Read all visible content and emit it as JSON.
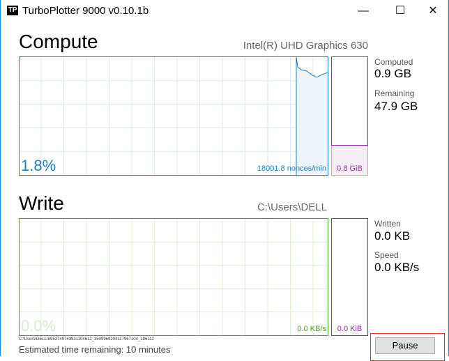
{
  "window": {
    "title": "TurboPlotter 9000 v0.10.1b",
    "logo": "TP",
    "minimize": "—",
    "maximize": "☐",
    "close": "✕"
  },
  "compute": {
    "title": "Compute",
    "device": "Intel(R) UHD Graphics 630",
    "percent": "1.8%",
    "rate": "18001.8 nonces/min",
    "memory": "0.8 GiB",
    "memory_fill": 0.25,
    "computed_label": "Computed",
    "computed_value": "0.9 GB",
    "remaining_label": "Remaining",
    "remaining_value": "47.9 GB",
    "color": "#1a7fc4",
    "bar_color": "#9a28b4"
  },
  "write": {
    "title": "Write",
    "path": "C:\\Users\\DELL",
    "percent": "0.0%",
    "rate": "0.0 KB/s",
    "memory": "0.0 KiB",
    "written_label": "Written",
    "written_value": "0.0 KB",
    "speed_label": "Speed",
    "speed_value": "0.0 KB/s",
    "color": "#4da31e",
    "bar_color": "#9a28b4"
  },
  "footer": {
    "file": "C:\\Users\\DELL\\8952749743931104512_3509969204117967104_186112",
    "eta": "Estimated time remaining: 10 minutes",
    "pause": "Pause"
  }
}
